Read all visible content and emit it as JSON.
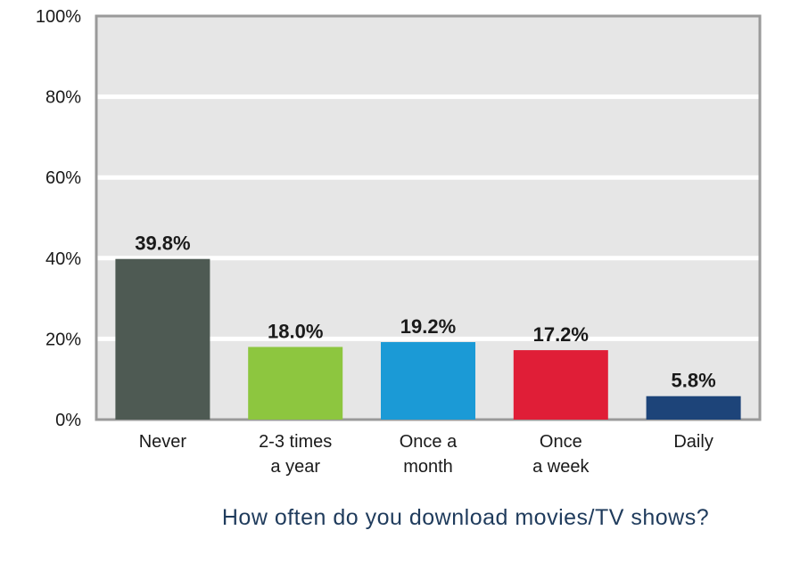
{
  "chart_data": {
    "type": "bar",
    "title": "How often do you download movies/TV shows?",
    "xlabel": "",
    "ylabel": "",
    "ylim": [
      0,
      100
    ],
    "yticks": [
      0,
      20,
      40,
      60,
      80,
      100
    ],
    "ytick_labels": [
      "0%",
      "20%",
      "40%",
      "60%",
      "80%",
      "100%"
    ],
    "categories": [
      [
        "Never"
      ],
      [
        "2-3 times",
        "a year"
      ],
      [
        "Once a",
        "month"
      ],
      [
        "Once",
        "a week"
      ],
      [
        "Daily"
      ]
    ],
    "values": [
      39.8,
      18.0,
      19.2,
      17.2,
      5.8
    ],
    "data_labels": [
      "39.8%",
      "18.0%",
      "19.2%",
      "17.2%",
      "5.8%"
    ],
    "colors": [
      "#4e5a53",
      "#8dc63f",
      "#1b9ad6",
      "#e01e37",
      "#1d4479"
    ],
    "plot_background": "#e6e6e6",
    "grid": true,
    "legend": "none"
  }
}
